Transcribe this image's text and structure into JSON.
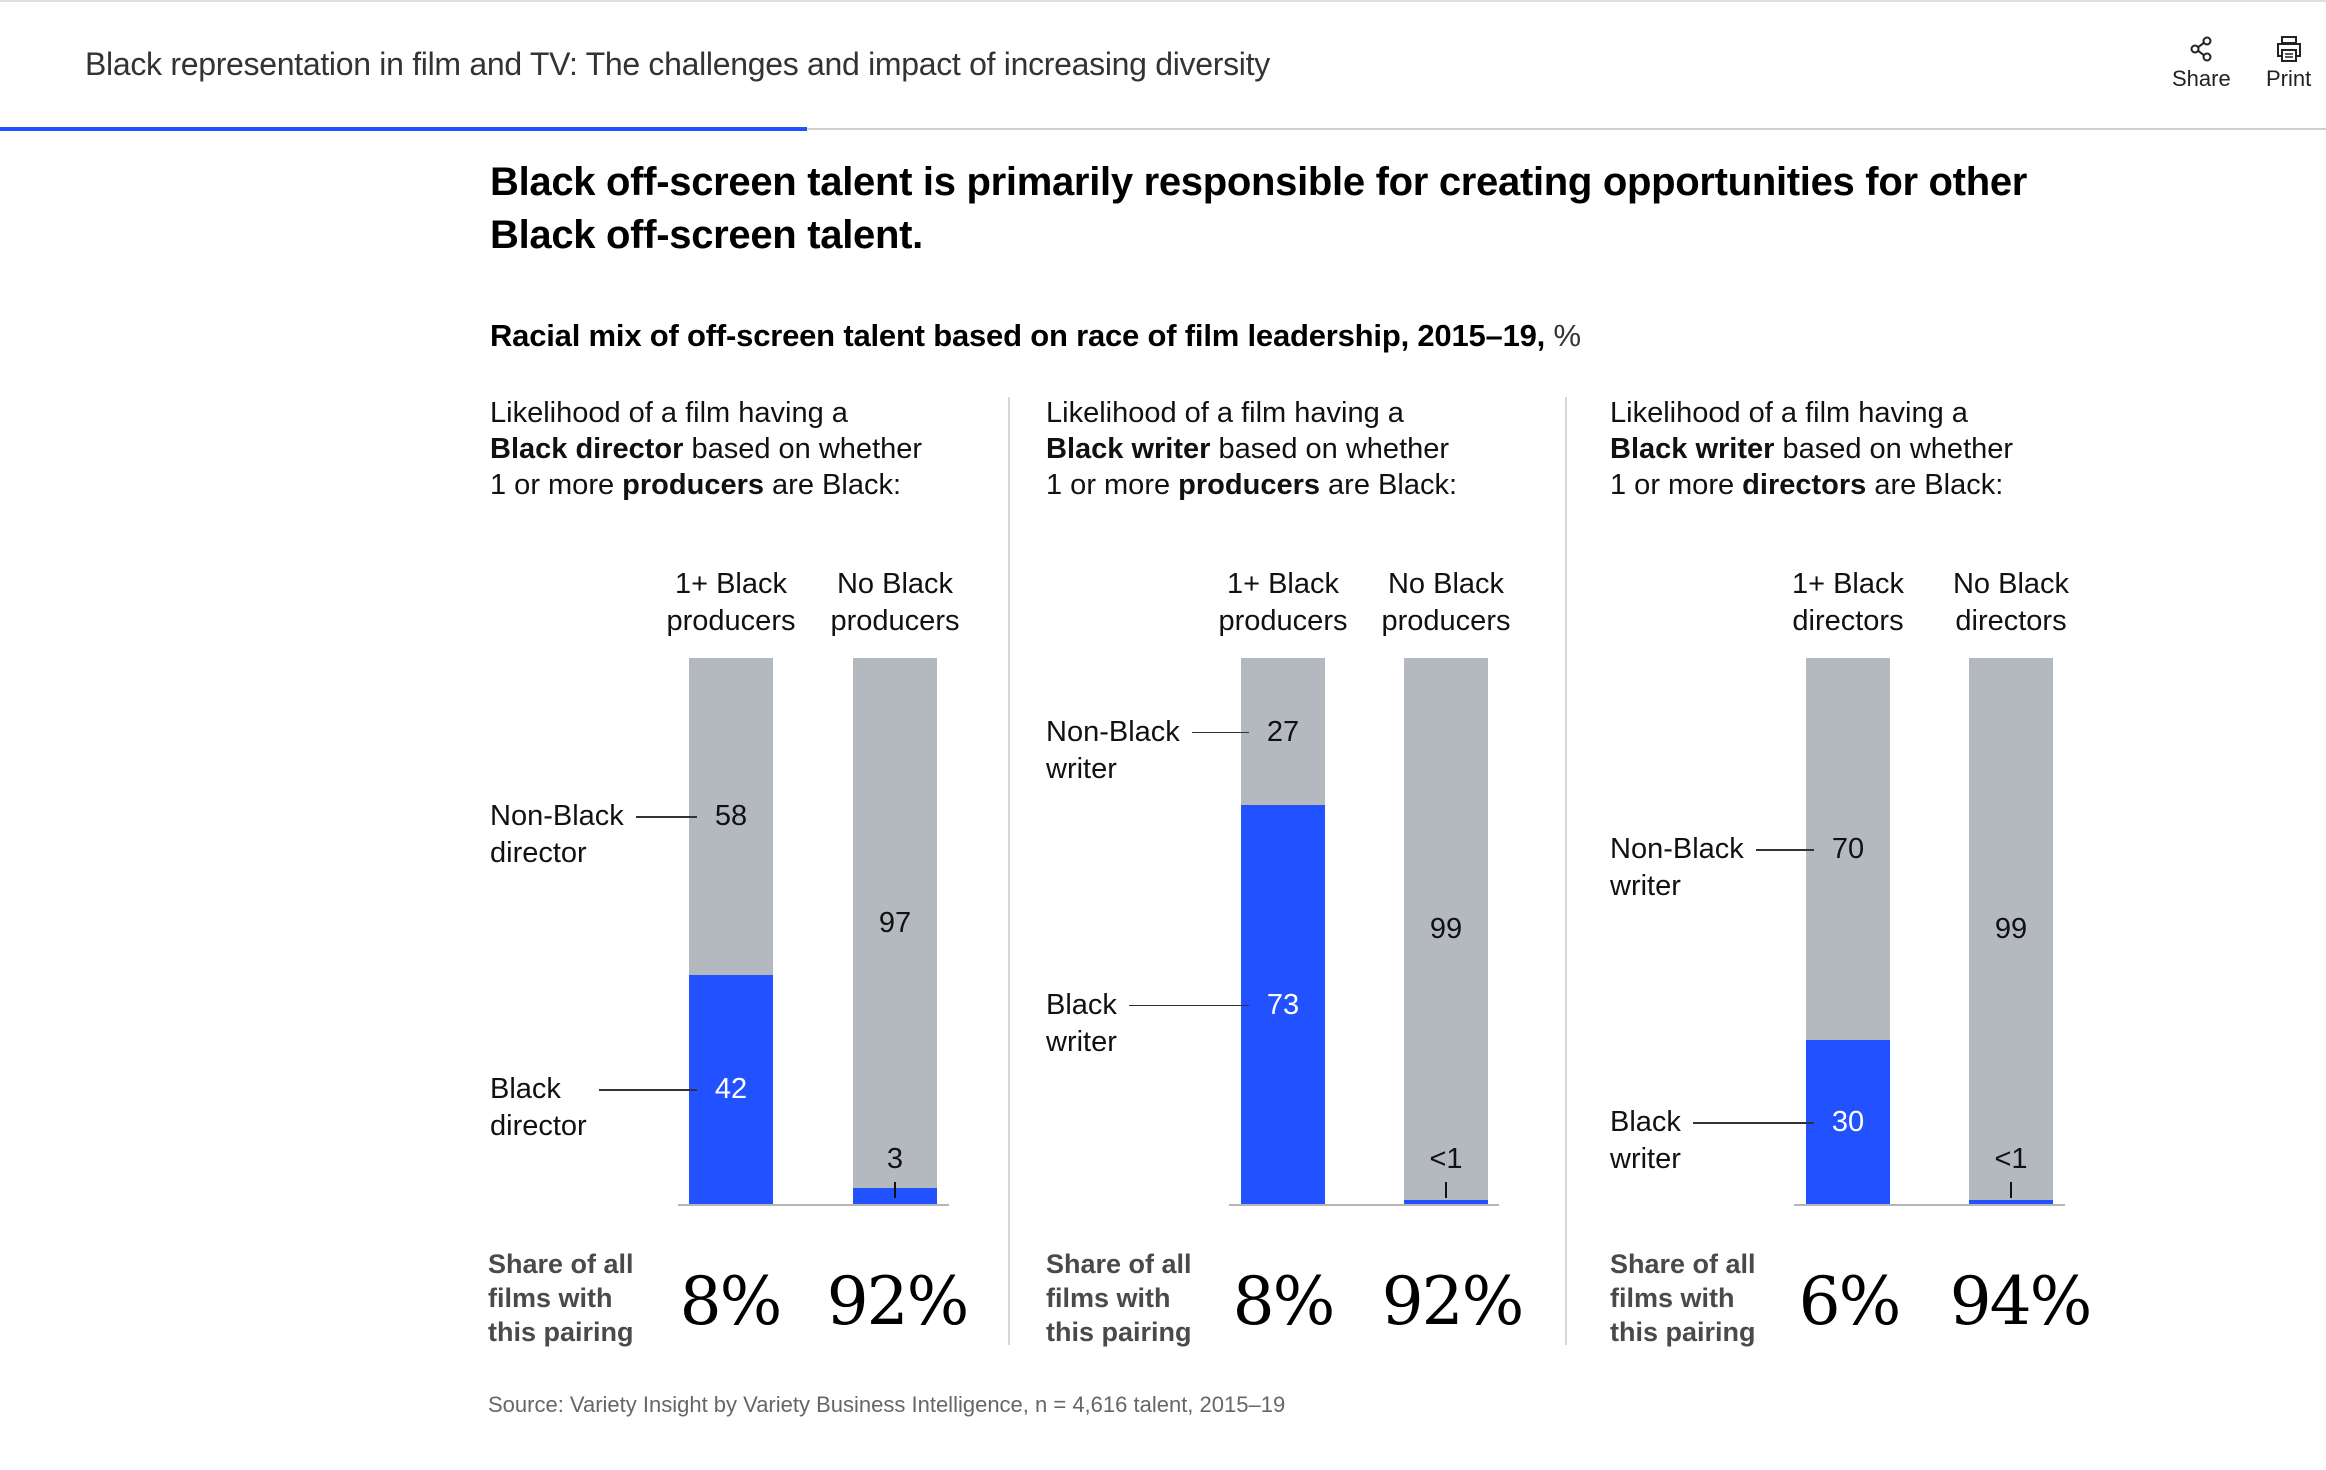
{
  "header": {
    "title": "Black representation in film and TV: The challenges and impact of increasing diversity",
    "reading_progress": 0.347,
    "share_label": "Share",
    "print_label": "Print",
    "share_icon": "share-icon",
    "print_icon": "print-icon"
  },
  "colors": {
    "accent_blue": "#2251ff",
    "bar_gray": "#b3b9bf"
  },
  "chart_data": {
    "type": "bar",
    "stacked": true,
    "title": "Black off-screen talent is primarily responsible for creating opportunities for other Black off-screen talent.",
    "subtitle_bold": "Racial mix of off-screen talent based on race of film leadership, 2015–19,",
    "subtitle_unit": "%",
    "ylim": [
      0,
      100
    ],
    "source": "Source: Variety Insight by Variety Business Intelligence, n = 4,616 talent, 2015–19",
    "panels": [
      {
        "desc_line1": "Likelihood of a film having a",
        "desc_bold1": "Black director",
        "desc_rest1": " based on whether",
        "desc_pre2": "1 or more ",
        "desc_bold2": "producers",
        "desc_rest2": " are Black:",
        "categories": [
          "1+ Black producers",
          "No Black producers"
        ],
        "category_lines": [
          [
            "1+ Black",
            "producers"
          ],
          [
            "No Black",
            "producers"
          ]
        ],
        "series": [
          {
            "name": "Black director",
            "label_lines": [
              "Black",
              "director"
            ],
            "values": [
              42,
              3
            ],
            "display": [
              "42",
              "3"
            ]
          },
          {
            "name": "Non-Black director",
            "label_lines": [
              "Non-Black",
              "director"
            ],
            "values": [
              58,
              97
            ],
            "display": [
              "58",
              "97"
            ]
          }
        ],
        "share_label_lines": [
          "Share of all",
          "films with",
          "this pairing"
        ],
        "shares": [
          "8%",
          "92%"
        ]
      },
      {
        "desc_line1": "Likelihood of a film having a",
        "desc_bold1": "Black writer",
        "desc_rest1": " based on whether",
        "desc_pre2": "1 or more ",
        "desc_bold2": "producers",
        "desc_rest2": " are Black:",
        "categories": [
          "1+ Black producers",
          "No Black producers"
        ],
        "category_lines": [
          [
            "1+ Black",
            "producers"
          ],
          [
            "No Black",
            "producers"
          ]
        ],
        "series": [
          {
            "name": "Black writer",
            "label_lines": [
              "Black",
              "writer"
            ],
            "values": [
              73,
              0.8
            ],
            "display": [
              "73",
              "<1"
            ]
          },
          {
            "name": "Non-Black writer",
            "label_lines": [
              "Non-Black",
              "writer"
            ],
            "values": [
              27,
              99
            ],
            "display": [
              "27",
              "99"
            ]
          }
        ],
        "share_label_lines": [
          "Share of all",
          "films with",
          "this pairing"
        ],
        "shares": [
          "8%",
          "92%"
        ]
      },
      {
        "desc_line1": "Likelihood of a film having a",
        "desc_bold1": "Black writer",
        "desc_rest1": " based on whether",
        "desc_pre2": "1 or more ",
        "desc_bold2": "directors",
        "desc_rest2": " are Black:",
        "categories": [
          "1+ Black directors",
          "No Black directors"
        ],
        "category_lines": [
          [
            "1+ Black",
            "directors"
          ],
          [
            "No Black",
            "directors"
          ]
        ],
        "series": [
          {
            "name": "Black writer",
            "label_lines": [
              "Black",
              "writer"
            ],
            "values": [
              30,
              0.8
            ],
            "display": [
              "30",
              "<1"
            ]
          },
          {
            "name": "Non-Black writer",
            "label_lines": [
              "Non-Black",
              "writer"
            ],
            "values": [
              70,
              99
            ],
            "display": [
              "70",
              "99"
            ]
          }
        ],
        "share_label_lines": [
          "Share of all",
          "films with",
          "this pairing"
        ],
        "shares": [
          "6%",
          "94%"
        ]
      }
    ]
  }
}
